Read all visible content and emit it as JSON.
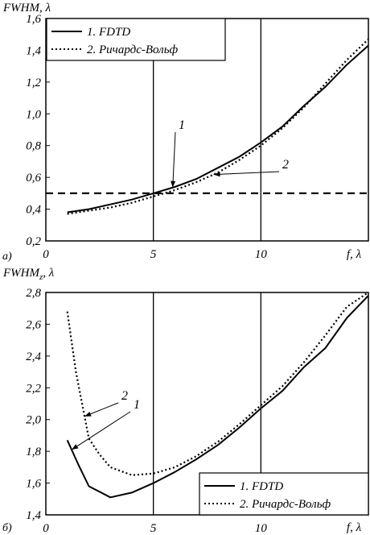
{
  "chart_data": [
    {
      "type": "line",
      "panel_label": "а)",
      "ylabel": "FWHM, λ",
      "xlabel": "f, λ",
      "xlim": [
        0,
        15
      ],
      "ylim": [
        0.2,
        1.6
      ],
      "x_ticks": [
        "0",
        "5",
        "10"
      ],
      "y_ticks": [
        "0,2",
        "0,4",
        "0,6",
        "0,8",
        "1,0",
        "1,2",
        "1,4",
        "1,6"
      ],
      "grid": "vertical lines at x = 5 and 10",
      "legend_position": "top-left",
      "reference_line": {
        "y": 0.5,
        "style": "dashed"
      },
      "series": [
        {
          "name": "1. FDTD",
          "style": "solid",
          "points": [
            [
              1,
              0.38
            ],
            [
              2,
              0.4
            ],
            [
              3,
              0.43
            ],
            [
              4,
              0.46
            ],
            [
              5,
              0.5
            ],
            [
              6,
              0.54
            ],
            [
              7,
              0.59
            ],
            [
              8,
              0.66
            ],
            [
              9,
              0.73
            ],
            [
              10,
              0.82
            ],
            [
              11,
              0.92
            ],
            [
              12,
              1.05
            ],
            [
              13,
              1.17
            ],
            [
              14,
              1.31
            ],
            [
              15,
              1.43
            ]
          ]
        },
        {
          "name": "2. Ричардс-Вольф",
          "style": "dotted",
          "points": [
            [
              1,
              0.37
            ],
            [
              2,
              0.39
            ],
            [
              3,
              0.41
            ],
            [
              4,
              0.44
            ],
            [
              5,
              0.48
            ],
            [
              6,
              0.52
            ],
            [
              7,
              0.57
            ],
            [
              8,
              0.63
            ],
            [
              9,
              0.71
            ],
            [
              10,
              0.8
            ],
            [
              11,
              0.91
            ],
            [
              12,
              1.04
            ],
            [
              13,
              1.19
            ],
            [
              14,
              1.34
            ],
            [
              15,
              1.47
            ]
          ]
        }
      ],
      "callouts": [
        {
          "text": "1",
          "series": "1. FDTD"
        },
        {
          "text": "2",
          "series": "2. Ричардс-Вольф"
        }
      ]
    },
    {
      "type": "line",
      "panel_label": "б)",
      "ylabel_main": "FWHM",
      "ylabel_sub": "z",
      "ylabel_tail": ", λ",
      "xlabel": "f, λ",
      "xlim": [
        0,
        15
      ],
      "ylim": [
        1.4,
        2.8
      ],
      "x_ticks": [
        "0",
        "5",
        "10"
      ],
      "y_ticks": [
        "1,4",
        "1,6",
        "1,8",
        "2,0",
        "2,2",
        "2,4",
        "2,6",
        "2,8"
      ],
      "grid": "vertical lines at x = 5 and 10",
      "legend_position": "bottom-right",
      "series": [
        {
          "name": "1. FDTD",
          "style": "solid",
          "points": [
            [
              1,
              1.87
            ],
            [
              1.5,
              1.72
            ],
            [
              2,
              1.58
            ],
            [
              3,
              1.51
            ],
            [
              4,
              1.54
            ],
            [
              5,
              1.6
            ],
            [
              6,
              1.67
            ],
            [
              7,
              1.75
            ],
            [
              8,
              1.84
            ],
            [
              9,
              1.95
            ],
            [
              10,
              2.07
            ],
            [
              11,
              2.18
            ],
            [
              12,
              2.33
            ],
            [
              13,
              2.45
            ],
            [
              14,
              2.64
            ],
            [
              15,
              2.78
            ]
          ]
        },
        {
          "name": "2. Ричардс-Вольф",
          "style": "dotted",
          "points": [
            [
              1,
              2.68
            ],
            [
              1.4,
              2.3
            ],
            [
              2,
              1.88
            ],
            [
              2.5,
              1.78
            ],
            [
              3,
              1.7
            ],
            [
              4,
              1.65
            ],
            [
              5,
              1.66
            ],
            [
              6,
              1.7
            ],
            [
              7,
              1.77
            ],
            [
              8,
              1.86
            ],
            [
              9,
              1.97
            ],
            [
              10,
              2.09
            ],
            [
              11,
              2.21
            ],
            [
              12,
              2.36
            ],
            [
              13,
              2.53
            ],
            [
              14,
              2.71
            ],
            [
              15,
              2.8
            ]
          ]
        }
      ],
      "callouts": [
        {
          "text": "2",
          "series": "2. Ричардс-Вольф"
        },
        {
          "text": "1",
          "series": "1. FDTD"
        }
      ]
    }
  ]
}
